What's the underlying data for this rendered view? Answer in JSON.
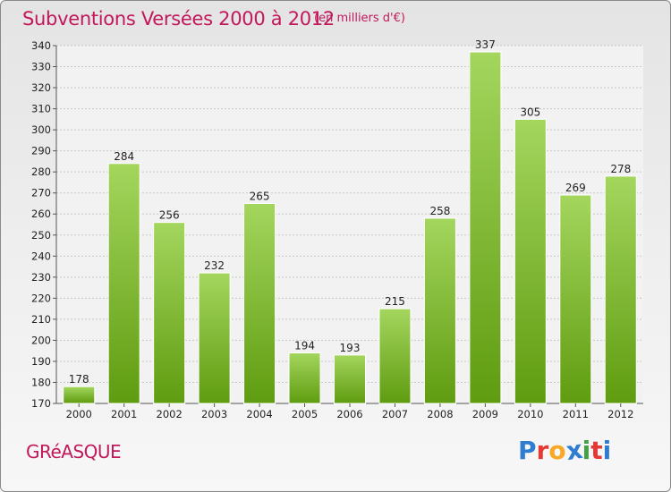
{
  "title": "Subventions Versées 2000 à 2012",
  "subtitle": "(en milliers d'€)",
  "city": "GRéASQUE",
  "logo": {
    "letters": [
      "P",
      "r",
      "o",
      "x",
      "i",
      "t",
      "i"
    ],
    "colors": [
      "#2e7dd1",
      "#e53935",
      "#f9a825",
      "#2e7dd1",
      "#43a047",
      "#e53935",
      "#2e7dd1"
    ]
  },
  "colors": {
    "bar_light": "#a4d65e",
    "bar_dark": "#5f9c10",
    "title": "#c2185b"
  },
  "chart_data": {
    "type": "bar",
    "categories": [
      "2000",
      "2001",
      "2002",
      "2003",
      "2004",
      "2005",
      "2006",
      "2007",
      "2008",
      "2009",
      "2010",
      "2011",
      "2012"
    ],
    "values": [
      178,
      284,
      256,
      232,
      265,
      194,
      193,
      215,
      258,
      337,
      305,
      269,
      278
    ],
    "ylim": [
      170,
      340
    ],
    "yticks": [
      170,
      180,
      190,
      200,
      210,
      220,
      230,
      240,
      250,
      260,
      270,
      280,
      290,
      300,
      310,
      320,
      330,
      340
    ],
    "grid": true,
    "xlabel": "",
    "ylabel": ""
  }
}
